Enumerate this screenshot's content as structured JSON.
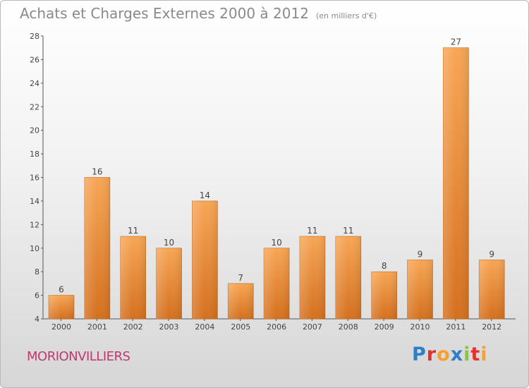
{
  "title": "Achats et Charges Externes 2000 à 2012",
  "subtitle": "(en milliers d'€)",
  "place": "MORIONVILLIERS",
  "brand": "Proxiti",
  "brand_colors": [
    "#2e7fc6",
    "#e2312d",
    "#f7a12a",
    "#2e7fc6",
    "#8cc63e",
    "#e2312d",
    "#f7a12a"
  ],
  "chart_data": {
    "type": "bar",
    "categories": [
      "2000",
      "2001",
      "2002",
      "2003",
      "2004",
      "2005",
      "2006",
      "2007",
      "2008",
      "2009",
      "2010",
      "2011",
      "2012"
    ],
    "values": [
      6,
      16,
      11,
      10,
      14,
      7,
      10,
      11,
      11,
      8,
      9,
      27,
      9
    ],
    "ylim": [
      4,
      28
    ],
    "yticks": [
      4,
      6,
      8,
      10,
      12,
      14,
      16,
      18,
      20,
      22,
      24,
      26,
      28
    ],
    "grid": false,
    "bar_color": "#f0903a"
  }
}
